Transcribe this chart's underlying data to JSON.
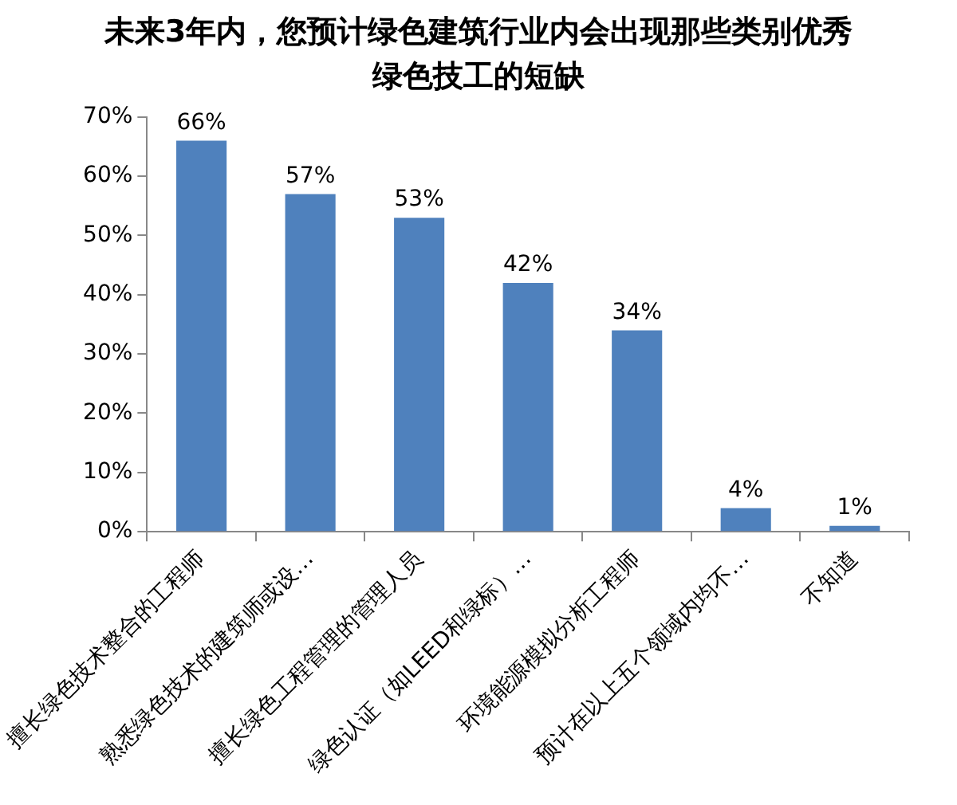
{
  "chart_data": {
    "type": "bar",
    "title": "未来3年内，您预计绿色建筑行业内会出现那些类别优秀绿色技工的短缺",
    "categories": [
      "擅长绿色技术整合的工程师",
      "熟悉绿色技术的建筑师或设…",
      "擅长绿色工程管理的管理人员",
      "绿色认证（如LEED和绿标）…",
      "环境能源模拟分析工程师",
      "预计在以上五个领域内均不…",
      "不知道"
    ],
    "values": [
      66,
      57,
      53,
      42,
      34,
      4,
      1
    ],
    "value_labels": [
      "66%",
      "57%",
      "53%",
      "42%",
      "34%",
      "4%",
      "1%"
    ],
    "color": "#4f81bd",
    "ylim": [
      0,
      70
    ],
    "yticks": [
      {
        "value": 0,
        "label": "0%"
      },
      {
        "value": 10,
        "label": "10%"
      },
      {
        "value": 20,
        "label": "20%"
      },
      {
        "value": 30,
        "label": "30%"
      },
      {
        "value": 40,
        "label": "40%"
      },
      {
        "value": 50,
        "label": "50%"
      },
      {
        "value": 60,
        "label": "60%"
      },
      {
        "value": 70,
        "label": "70%"
      }
    ],
    "grid": false,
    "legend": false
  }
}
